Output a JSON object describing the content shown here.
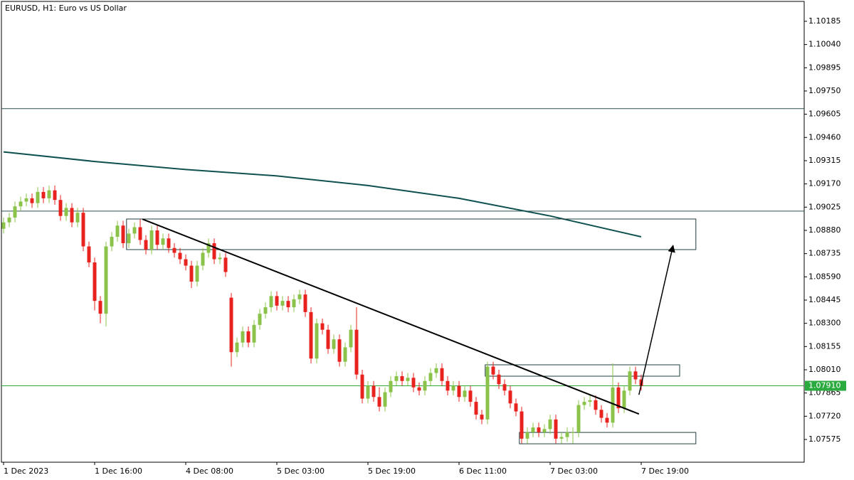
{
  "chart_data": {
    "type": "candlestick",
    "title": "EURUSD, H1:  Euro vs US Dollar",
    "up_color": "#8bc34a",
    "down_color": "#e8231f",
    "candles": {
      "open": [
        1.0889,
        1.0893,
        1.0896,
        1.0903,
        1.0906,
        1.0908,
        1.0905,
        1.0912,
        1.0908,
        1.0913,
        1.0907,
        1.0897,
        1.0902,
        1.0893,
        1.0899,
        1.0878,
        1.0868,
        1.0844,
        1.0836,
        1.0878,
        1.0884,
        1.0891,
        1.088,
        1.0886,
        1.089,
        1.0882,
        1.0876,
        1.0888,
        1.0879,
        1.0883,
        1.0877,
        1.0874,
        1.087,
        1.0866,
        1.0856,
        1.0866,
        1.0874,
        1.088,
        1.087,
        1.0871,
        1.0846,
        1.0812,
        1.0818,
        1.0825,
        1.0818,
        1.0829,
        1.0836,
        1.084,
        1.0847,
        1.0841,
        1.0844,
        1.084,
        1.0845,
        1.0848,
        1.0837,
        1.0808,
        1.083,
        1.0826,
        1.0814,
        1.082,
        1.0806,
        1.0815,
        1.0826,
        1.0798,
        1.0783,
        1.0791,
        1.0784,
        1.0778,
        1.0787,
        1.0794,
        1.0797,
        1.0794,
        1.0796,
        1.079,
        1.0788,
        1.0794,
        1.0799,
        1.0802,
        1.0794,
        1.0788,
        1.0791,
        1.0784,
        1.0788,
        1.0781,
        1.0773,
        1.077,
        1.0803,
        1.0798,
        1.0792,
        1.0788,
        1.078,
        1.0775,
        1.0758,
        1.0762,
        1.0765,
        1.0762,
        1.0764,
        1.077,
        1.0758,
        1.0759,
        1.0762,
        1.0762,
        1.0779,
        1.0781,
        1.0782,
        1.0776,
        1.0771,
        1.0768,
        1.079,
        1.0777,
        1.0788,
        1.08,
        1.0795
      ],
      "high": [
        1.0896,
        1.0899,
        1.0906,
        1.0909,
        1.0911,
        1.0911,
        1.0915,
        1.0915,
        1.0916,
        1.0916,
        1.091,
        1.0905,
        1.0905,
        1.0902,
        1.0902,
        1.0881,
        1.0871,
        1.0847,
        1.0881,
        1.0887,
        1.0894,
        1.0894,
        1.0889,
        1.0893,
        1.0895,
        1.0885,
        1.0891,
        1.0891,
        1.0886,
        1.0886,
        1.088,
        1.0877,
        1.0873,
        1.0869,
        1.0869,
        1.0877,
        1.0883,
        1.0883,
        1.0874,
        1.0874,
        1.0849,
        1.0821,
        1.0828,
        1.0828,
        1.0832,
        1.0839,
        1.0843,
        1.085,
        1.085,
        1.0847,
        1.0847,
        1.0848,
        1.0851,
        1.0851,
        1.084,
        1.0833,
        1.0833,
        1.0829,
        1.0823,
        1.0823,
        1.0818,
        1.0829,
        1.084,
        1.0801,
        1.0794,
        1.0794,
        1.079,
        1.079,
        1.0797,
        1.08,
        1.08,
        1.0799,
        1.0799,
        1.0793,
        1.0797,
        1.0802,
        1.0805,
        1.0805,
        1.0797,
        1.0794,
        1.0794,
        1.0791,
        1.0791,
        1.0784,
        1.0776,
        1.0806,
        1.0806,
        1.0801,
        1.0795,
        1.0791,
        1.0783,
        1.0778,
        1.0765,
        1.0768,
        1.0768,
        1.0767,
        1.0773,
        1.0773,
        1.0762,
        1.0765,
        1.0765,
        1.0782,
        1.0784,
        1.0785,
        1.0785,
        1.0779,
        1.0774,
        1.0805,
        1.0793,
        1.0791,
        1.0803,
        1.0803,
        1.0798
      ],
      "low": [
        1.0886,
        1.089,
        1.0893,
        1.09,
        1.0903,
        1.0902,
        1.0902,
        1.0905,
        1.0905,
        1.0904,
        1.0894,
        1.0894,
        1.089,
        1.089,
        1.0875,
        1.0865,
        1.0838,
        1.083,
        1.0828,
        1.0875,
        1.0881,
        1.0877,
        1.0877,
        1.0883,
        1.0879,
        1.0873,
        1.0873,
        1.0876,
        1.0876,
        1.0874,
        1.0871,
        1.0867,
        1.0863,
        1.0852,
        1.0853,
        1.0863,
        1.0871,
        1.0867,
        1.0867,
        1.0859,
        1.0803,
        1.0809,
        1.0815,
        1.0815,
        1.0815,
        1.0826,
        1.0833,
        1.0837,
        1.0838,
        1.0838,
        1.0837,
        1.0837,
        1.0842,
        1.0834,
        1.0805,
        1.0805,
        1.0823,
        1.0811,
        1.0811,
        1.0803,
        1.0803,
        1.0812,
        1.0795,
        1.078,
        1.078,
        1.0781,
        1.0775,
        1.0775,
        1.0784,
        1.0791,
        1.0791,
        1.0791,
        1.0787,
        1.0785,
        1.0785,
        1.0791,
        1.0796,
        1.0791,
        1.0785,
        1.0785,
        1.0781,
        1.0781,
        1.0778,
        1.077,
        1.0767,
        1.0767,
        1.0795,
        1.0789,
        1.0785,
        1.0777,
        1.0772,
        1.0755,
        1.0755,
        1.0759,
        1.0759,
        1.0759,
        1.0761,
        1.0755,
        1.0755,
        1.0756,
        1.0755,
        1.0759,
        1.0776,
        1.0778,
        1.0773,
        1.0768,
        1.0765,
        1.0765,
        1.0774,
        1.0774,
        1.0785,
        1.0792,
        1.0788
      ],
      "close": [
        1.0893,
        1.0896,
        1.0903,
        1.0906,
        1.0908,
        1.0905,
        1.0912,
        1.0908,
        1.0913,
        1.0907,
        1.0897,
        1.0902,
        1.0893,
        1.0899,
        1.0878,
        1.0868,
        1.0844,
        1.0836,
        1.0878,
        1.0884,
        1.0891,
        1.088,
        1.0886,
        1.089,
        1.0882,
        1.0876,
        1.0888,
        1.0879,
        1.0883,
        1.0877,
        1.0874,
        1.087,
        1.0866,
        1.0856,
        1.0866,
        1.0874,
        1.088,
        1.087,
        1.0871,
        1.0862,
        1.0812,
        1.0818,
        1.0825,
        1.0818,
        1.0829,
        1.0836,
        1.084,
        1.0847,
        1.0841,
        1.0844,
        1.084,
        1.0845,
        1.0848,
        1.0837,
        1.0808,
        1.083,
        1.0826,
        1.0814,
        1.082,
        1.0806,
        1.0815,
        1.0826,
        1.0798,
        1.0783,
        1.0791,
        1.0784,
        1.0778,
        1.0787,
        1.0794,
        1.0797,
        1.0794,
        1.0796,
        1.079,
        1.0788,
        1.0794,
        1.0799,
        1.0802,
        1.0794,
        1.0788,
        1.0791,
        1.0784,
        1.0788,
        1.0781,
        1.0773,
        1.077,
        1.0803,
        1.0798,
        1.0792,
        1.0788,
        1.078,
        1.0775,
        1.0758,
        1.0762,
        1.0765,
        1.0762,
        1.0764,
        1.077,
        1.0758,
        1.0759,
        1.0762,
        1.0762,
        1.0779,
        1.0781,
        1.0782,
        1.0776,
        1.0771,
        1.0768,
        1.079,
        1.0777,
        1.0788,
        1.08,
        1.0795,
        1.0791
      ]
    },
    "xlim": [
      -0.375,
      140.625
    ],
    "ylim": [
      1.07433,
      1.10309
    ],
    "xticks": [
      {
        "value": 0,
        "label": "1 Dec 2023"
      },
      {
        "value": 16,
        "label": "1 Dec 16:00"
      },
      {
        "value": 32,
        "label": "4 Dec 08:00"
      },
      {
        "value": 48,
        "label": "5 Dec 03:00"
      },
      {
        "value": 64,
        "label": "5 Dec 19:00"
      },
      {
        "value": 80,
        "label": "6 Dec 11:00"
      },
      {
        "value": 96,
        "label": "7 Dec 03:00"
      },
      {
        "value": 112,
        "label": "7 Dec 19:00"
      }
    ],
    "yticks": [
      1.10185,
      {
        "value": 1.1004,
        "label": "1.10040"
      },
      1.09895,
      {
        "value": 1.0975,
        "label": "1.09750"
      },
      1.09605,
      {
        "value": 1.0946,
        "label": "1.09460"
      },
      1.09315,
      {
        "value": 1.0917,
        "label": "1.09170"
      },
      1.09025,
      {
        "value": 1.0888,
        "label": "1.08880"
      },
      1.08735,
      {
        "value": 1.0859,
        "label": "1.08590"
      },
      1.08445,
      {
        "value": 1.083,
        "label": "1.08300"
      },
      1.08155,
      {
        "value": 1.0801,
        "label": "1.08010"
      },
      1.07865,
      {
        "value": 1.0772,
        "label": "1.07720"
      },
      1.07575
    ],
    "moving_average": {
      "color": "#0f5050",
      "x": [
        0,
        16,
        32,
        48,
        64,
        80,
        96,
        112
      ],
      "values": [
        1.0937,
        1.0931,
        1.0926,
        1.0922,
        1.0916,
        1.0908,
        1.0897,
        1.0884
      ]
    },
    "hlines": [
      {
        "value": 1.0964,
        "color": "#2f4f4f"
      },
      {
        "value": 1.09,
        "color": "#2f4f4f"
      }
    ],
    "current_price": {
      "value": 1.0791,
      "label": "1.07910",
      "color": "#2bab3f"
    },
    "rectangles": [
      {
        "x": [
          21.6,
          121.6
        ],
        "y": [
          1.0876,
          1.08951
        ]
      },
      {
        "x": [
          84.6,
          118.75
        ],
        "y": [
          1.0797,
          1.08041
        ]
      },
      {
        "x": [
          90.6,
          121.6
        ],
        "y": [
          1.07548,
          1.07619
        ]
      }
    ],
    "trendline": {
      "x": [
        24.4,
        111.6
      ],
      "y": [
        1.0895,
        1.07734
      ]
    },
    "arrow": {
      "x": [
        111.6,
        117.6
      ],
      "y": [
        1.07854,
        1.08786
      ]
    }
  }
}
